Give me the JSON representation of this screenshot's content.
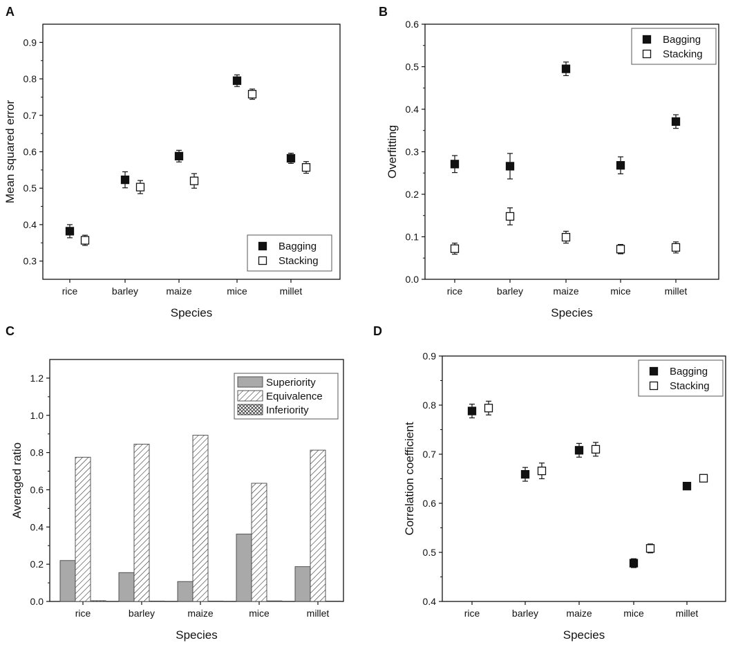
{
  "chart_data": [
    {
      "panel": "A",
      "type": "scatter",
      "subtype": "errorbar",
      "title": "",
      "xlabel": "Species",
      "ylabel": "Mean squared error",
      "categories": [
        "rice",
        "barley",
        "maize",
        "mice",
        "millet"
      ],
      "ylim": [
        0.25,
        0.95
      ],
      "yticks": [
        0.3,
        0.4,
        0.5,
        0.6,
        0.7,
        0.8,
        0.9
      ],
      "tick_labels": [
        "0.3",
        "0.4",
        "0.5",
        "0.6",
        "0.7",
        "0.8",
        "0.9"
      ],
      "legend_position": "bottom-right",
      "series": [
        {
          "name": "Bagging",
          "marker": "filled-square",
          "values": [
            0.382,
            0.523,
            0.588,
            0.795,
            0.582
          ],
          "errors": [
            0.018,
            0.022,
            0.016,
            0.016,
            0.014
          ]
        },
        {
          "name": "Stacking",
          "marker": "open-square",
          "values": [
            0.357,
            0.503,
            0.52,
            0.758,
            0.557
          ],
          "errors": [
            0.014,
            0.018,
            0.02,
            0.014,
            0.016
          ]
        }
      ]
    },
    {
      "panel": "B",
      "type": "scatter",
      "subtype": "errorbar",
      "title": "",
      "xlabel": "Species",
      "ylabel": "Overfitting",
      "categories": [
        "rice",
        "barley",
        "maize",
        "mice",
        "millet"
      ],
      "ylim": [
        0.0,
        0.6
      ],
      "yticks": [
        0.0,
        0.1,
        0.2,
        0.3,
        0.4,
        0.5,
        0.6
      ],
      "tick_labels": [
        "0.0",
        "0.1",
        "0.2",
        "0.3",
        "0.4",
        "0.5",
        "0.6"
      ],
      "legend_position": "top-right",
      "series": [
        {
          "name": "Bagging",
          "marker": "filled-square",
          "values": [
            0.271,
            0.266,
            0.495,
            0.268,
            0.371
          ],
          "errors": [
            0.02,
            0.03,
            0.016,
            0.02,
            0.016
          ]
        },
        {
          "name": "Stacking",
          "marker": "open-square",
          "values": [
            0.072,
            0.148,
            0.099,
            0.071,
            0.075
          ],
          "errors": [
            0.013,
            0.02,
            0.014,
            0.011,
            0.013
          ]
        }
      ]
    },
    {
      "panel": "C",
      "type": "bar",
      "title": "",
      "xlabel": "Species",
      "ylabel": "Averaged ratio",
      "categories": [
        "rice",
        "barley",
        "maize",
        "mice",
        "millet"
      ],
      "ylim": [
        0.0,
        1.3
      ],
      "yticks": [
        0.0,
        0.2,
        0.4,
        0.6,
        0.8,
        1.0,
        1.2
      ],
      "tick_labels": [
        "0.0",
        "0.2",
        "0.4",
        "0.6",
        "0.8",
        "1.0",
        "1.2"
      ],
      "legend_position": "top-right",
      "series": [
        {
          "name": "Superiority",
          "pattern": "solid-gray",
          "values": [
            0.22,
            0.155,
            0.107,
            0.362,
            0.187
          ]
        },
        {
          "name": "Equivalence",
          "pattern": "diagonal-hatch",
          "values": [
            0.775,
            0.845,
            0.893,
            0.635,
            0.813
          ]
        },
        {
          "name": "Inferiority",
          "pattern": "cross-hatch",
          "values": [
            0.004,
            0.0,
            0.0,
            0.003,
            0.0
          ]
        }
      ]
    },
    {
      "panel": "D",
      "type": "scatter",
      "subtype": "errorbar",
      "title": "",
      "xlabel": "Species",
      "ylabel": "Correlation coefficient",
      "categories": [
        "rice",
        "barley",
        "maize",
        "mice",
        "millet"
      ],
      "ylim": [
        0.4,
        0.9
      ],
      "yticks": [
        0.4,
        0.5,
        0.6,
        0.7,
        0.8,
        0.9
      ],
      "tick_labels": [
        "0.4",
        "0.5",
        "0.6",
        "0.7",
        "0.8",
        "0.9"
      ],
      "legend_position": "top-right",
      "series": [
        {
          "name": "Bagging",
          "marker": "filled-square",
          "values": [
            0.788,
            0.659,
            0.708,
            0.478,
            0.635
          ],
          "errors": [
            0.014,
            0.014,
            0.014,
            0.009,
            0.007
          ]
        },
        {
          "name": "Stacking",
          "marker": "open-square",
          "values": [
            0.794,
            0.666,
            0.71,
            0.508,
            0.651
          ],
          "errors": [
            0.014,
            0.016,
            0.014,
            0.009,
            0.007
          ]
        }
      ]
    }
  ],
  "colors": {
    "axis": "#111111",
    "marker_fill": "#111111",
    "bar_gray": "#a9a9a9",
    "background": "#ffffff"
  }
}
